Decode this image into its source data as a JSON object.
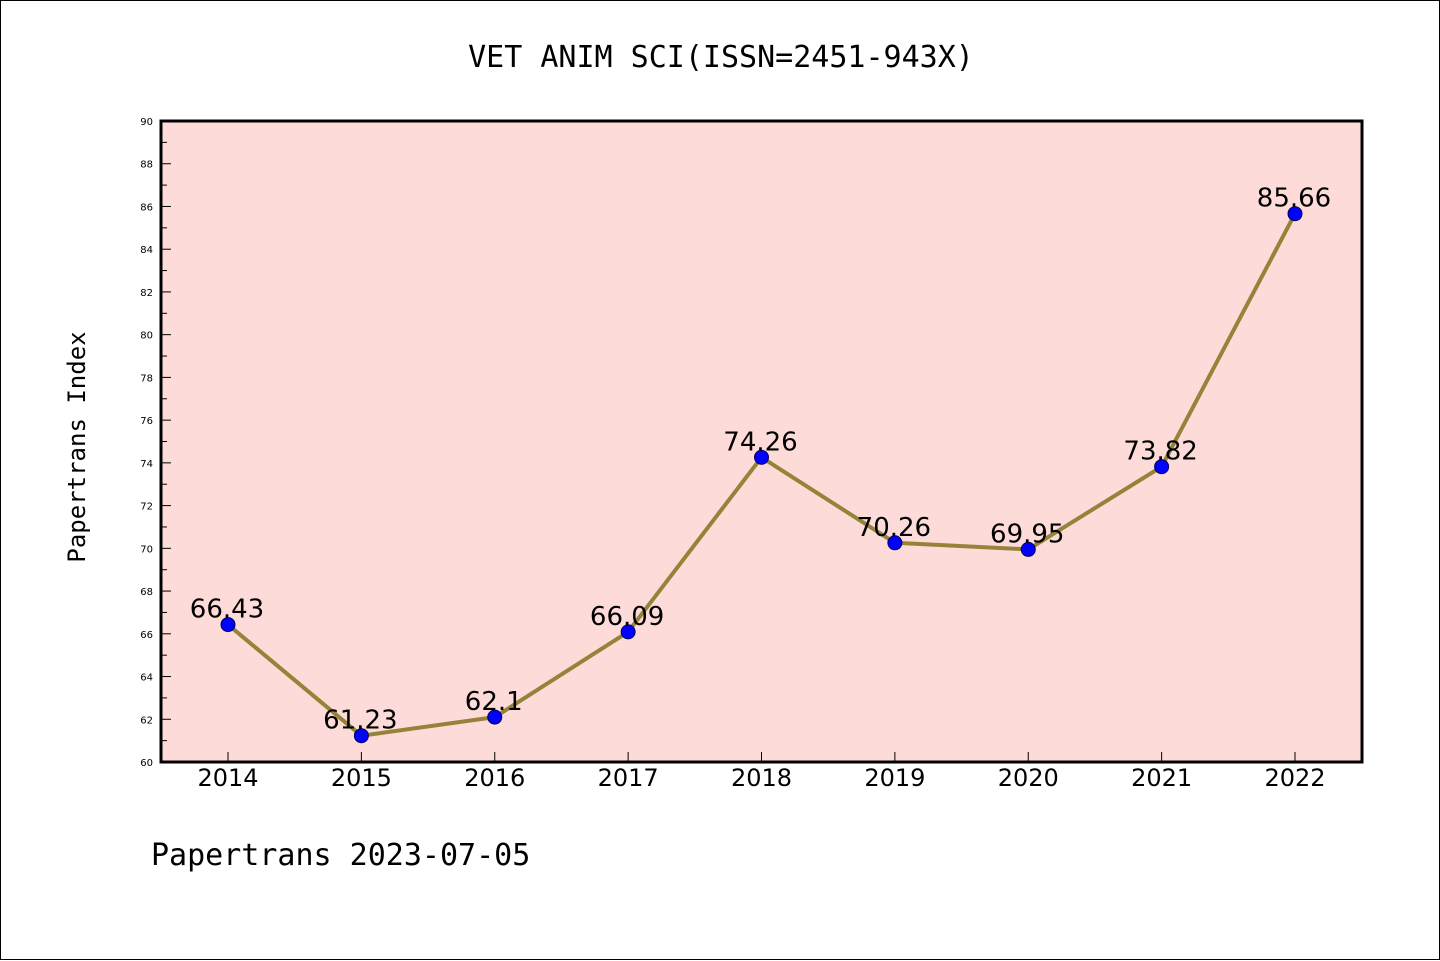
{
  "chart_data": {
    "type": "line",
    "title": "VET ANIM SCI(ISSN=2451-943X)",
    "ylabel": "Papertrans Index",
    "xlabel": "",
    "categories": [
      "2014",
      "2015",
      "2016",
      "2017",
      "2018",
      "2019",
      "2020",
      "2021",
      "2022"
    ],
    "series": [
      {
        "values": [
          66.43,
          61.23,
          62.1,
          66.09,
          74.26,
          70.26,
          69.95,
          73.82,
          85.66
        ],
        "labels": [
          "66.43",
          "61.23",
          "62.1",
          "66.09",
          "74.26",
          "70.26",
          "69.95",
          "73.82",
          "85.66"
        ]
      }
    ],
    "ylim": [
      60,
      90
    ],
    "yticks": [
      "60",
      "62",
      "64",
      "66",
      "68",
      "70",
      "72",
      "74",
      "76",
      "78",
      "80",
      "82",
      "84",
      "86",
      "88",
      "90"
    ],
    "grid": false,
    "colors": {
      "plot_background": "#fddbd8",
      "line": "#948339",
      "marker": "#0000ff"
    }
  },
  "footer": "Papertrans 2023-07-05"
}
